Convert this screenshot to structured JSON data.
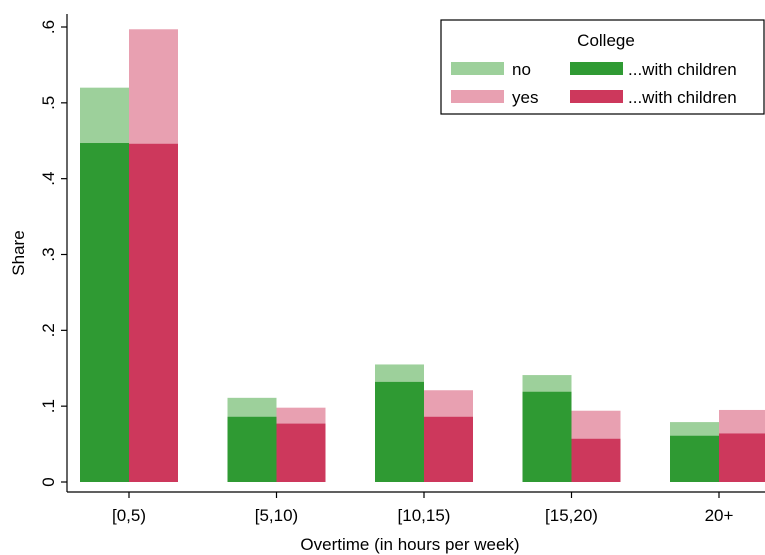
{
  "chart_data": {
    "type": "bar",
    "xlabel": "Overtime (in hours per week)",
    "ylabel": "Share",
    "ylim": [
      0,
      0.6
    ],
    "yticks": [
      {
        "value": 0,
        "label": "0"
      },
      {
        "value": 0.1,
        "label": ".1"
      },
      {
        "value": 0.2,
        "label": ".2"
      },
      {
        "value": 0.3,
        "label": ".3"
      },
      {
        "value": 0.4,
        "label": ".4"
      },
      {
        "value": 0.5,
        "label": ".5"
      },
      {
        "value": 0.6,
        "label": ".6"
      }
    ],
    "categories": [
      "[0,5)",
      "[5,10)",
      "[10,15)",
      "[15,20)",
      "20+"
    ],
    "grid": false,
    "legend": {
      "title": "College",
      "placement": "top-right",
      "entries": [
        "no",
        "yes",
        "...with children",
        "...with children"
      ]
    },
    "series": [
      {
        "name": "no",
        "color": "#9dd09b",
        "values": [
          0.52,
          0.111,
          0.155,
          0.141,
          0.079
        ]
      },
      {
        "name": "...with children",
        "color": "#2f9a33",
        "values": [
          0.447,
          0.086,
          0.132,
          0.119,
          0.061
        ]
      },
      {
        "name": "yes",
        "color": "#e8a0b1",
        "values": [
          0.597,
          0.098,
          0.121,
          0.094,
          0.095
        ]
      },
      {
        "name": "...with children",
        "color": "#cd385c",
        "values": [
          0.446,
          0.077,
          0.086,
          0.057,
          0.064
        ]
      }
    ]
  }
}
